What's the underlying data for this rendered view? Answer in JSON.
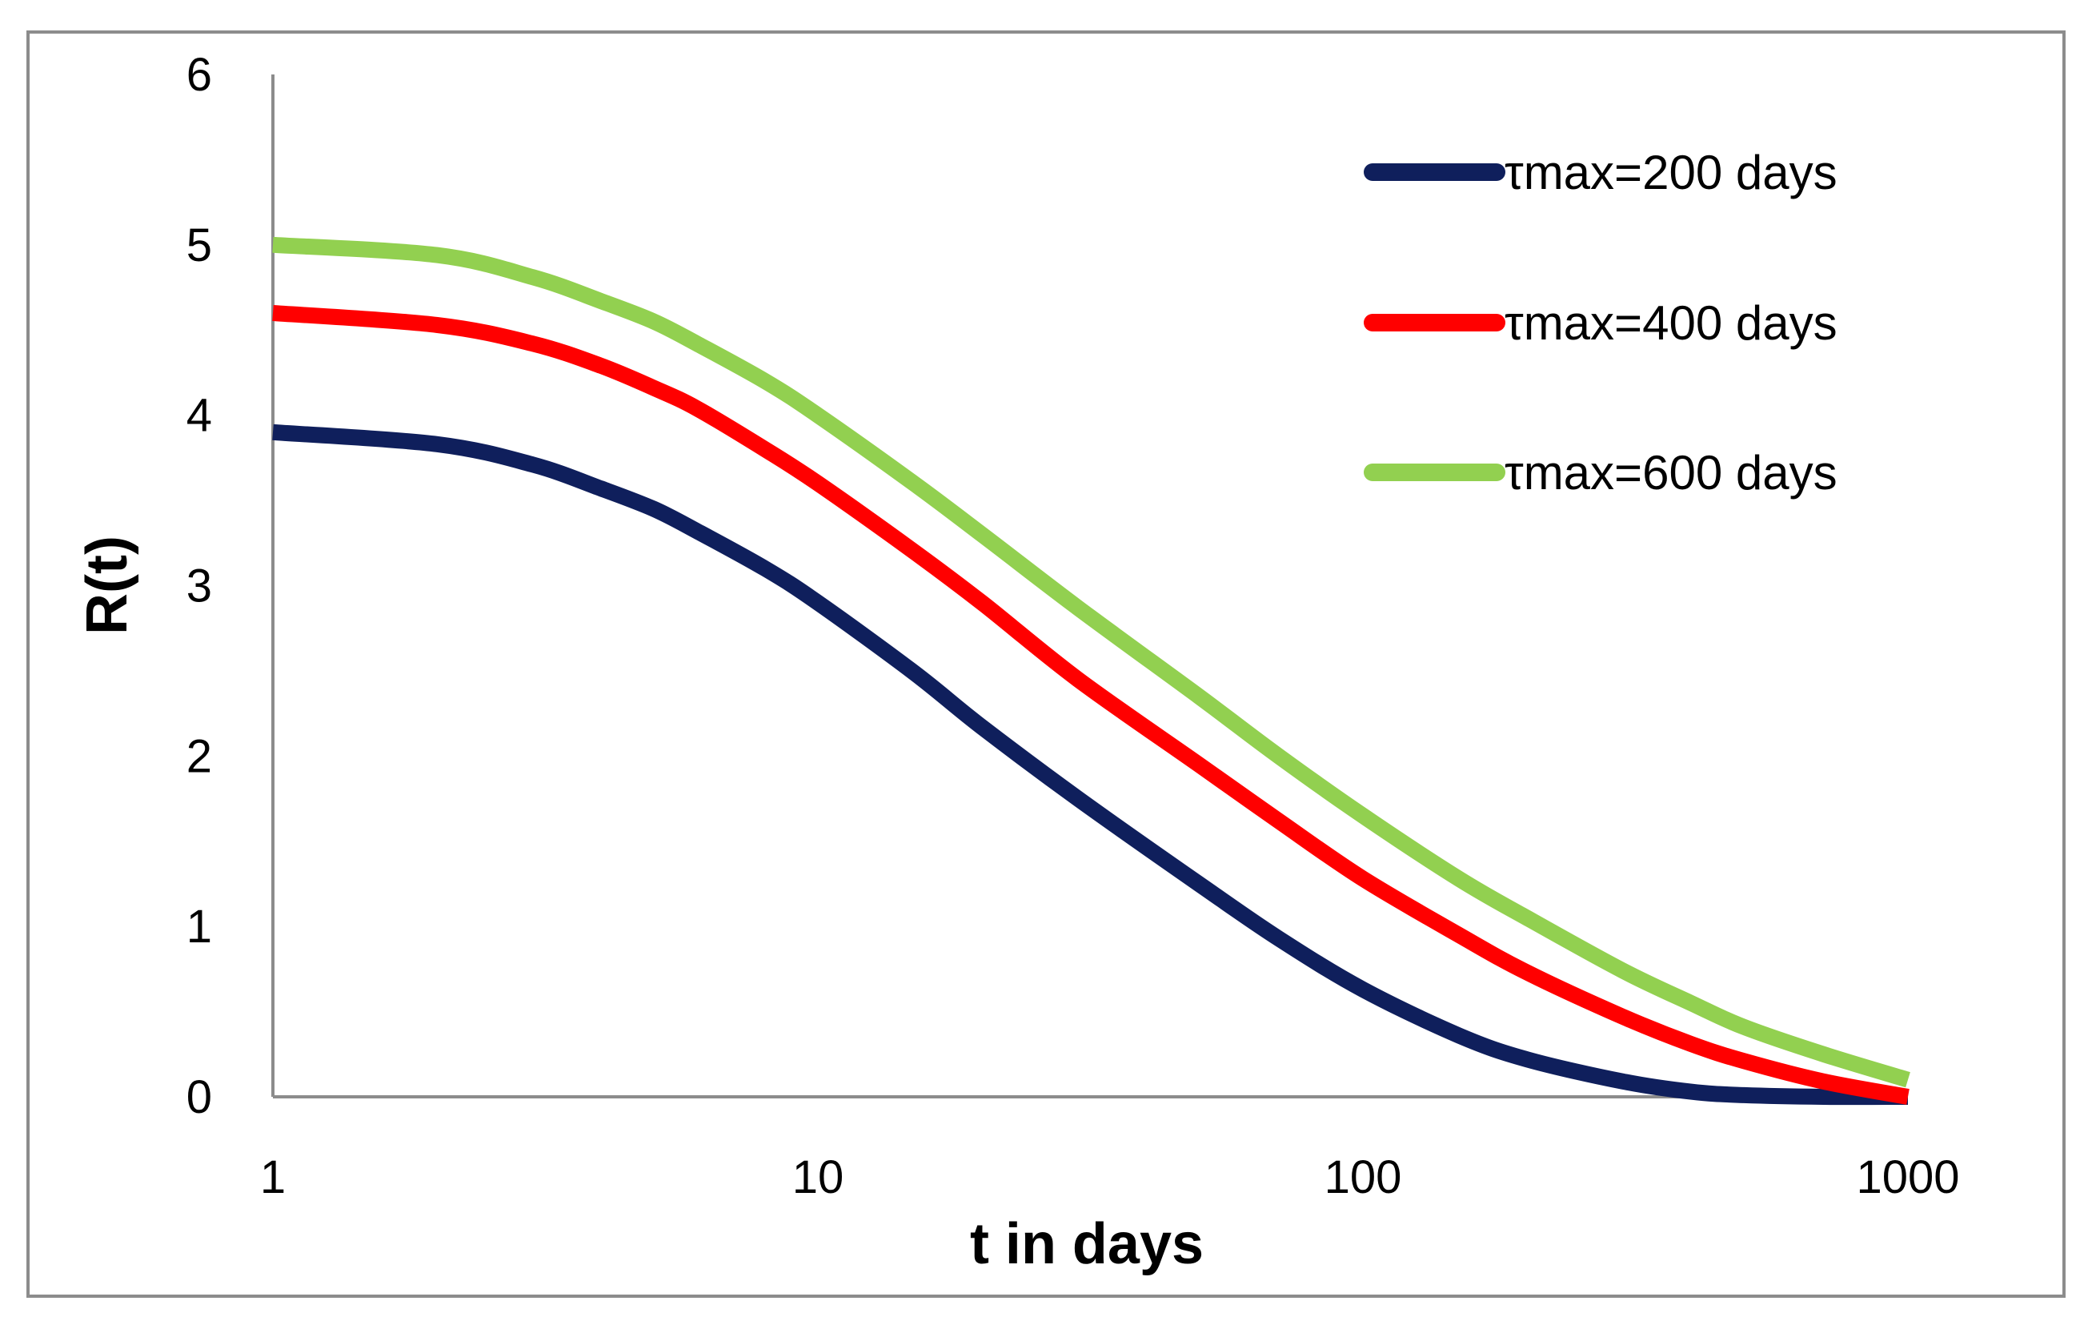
{
  "chart_data": {
    "type": "line",
    "title": "",
    "xlabel": "t in days",
    "ylabel": "R(t)",
    "xscale": "log",
    "xlim": [
      1,
      1000
    ],
    "ylim": [
      0,
      6
    ],
    "xticks": [
      1,
      10,
      100,
      1000
    ],
    "xtick_labels": [
      "1",
      "10",
      "100",
      "1000"
    ],
    "yticks": [
      0,
      1,
      2,
      3,
      4,
      5,
      6
    ],
    "ytick_labels": [
      "0",
      "1",
      "2",
      "3",
      "4",
      "5",
      "6"
    ],
    "grid": false,
    "legend_position": "top-right",
    "x": [
      1,
      2,
      3,
      4,
      5,
      6,
      8,
      10,
      15,
      20,
      30,
      50,
      70,
      100,
      150,
      200,
      300,
      400,
      500,
      700,
      1000
    ],
    "series": [
      {
        "name": "τmax=200 days",
        "color": "#0f1f5c",
        "values": [
          3.9,
          3.83,
          3.71,
          3.57,
          3.45,
          3.32,
          3.1,
          2.9,
          2.49,
          2.17,
          1.75,
          1.25,
          0.93,
          0.63,
          0.36,
          0.22,
          0.09,
          0.03,
          0.01,
          0.0,
          0.0
        ]
      },
      {
        "name": "τmax=400 days",
        "color": "#ff0000",
        "values": [
          4.6,
          4.53,
          4.42,
          4.29,
          4.16,
          4.04,
          3.8,
          3.6,
          3.2,
          2.9,
          2.45,
          1.95,
          1.62,
          1.28,
          0.95,
          0.73,
          0.47,
          0.31,
          0.21,
          0.09,
          0.0
        ]
      },
      {
        "name": "τmax=600 days",
        "color": "#92d050",
        "values": [
          5.0,
          4.94,
          4.81,
          4.67,
          4.55,
          4.42,
          4.2,
          4.0,
          3.6,
          3.3,
          2.87,
          2.35,
          2.0,
          1.65,
          1.28,
          1.05,
          0.74,
          0.55,
          0.41,
          0.25,
          0.1
        ]
      }
    ]
  }
}
